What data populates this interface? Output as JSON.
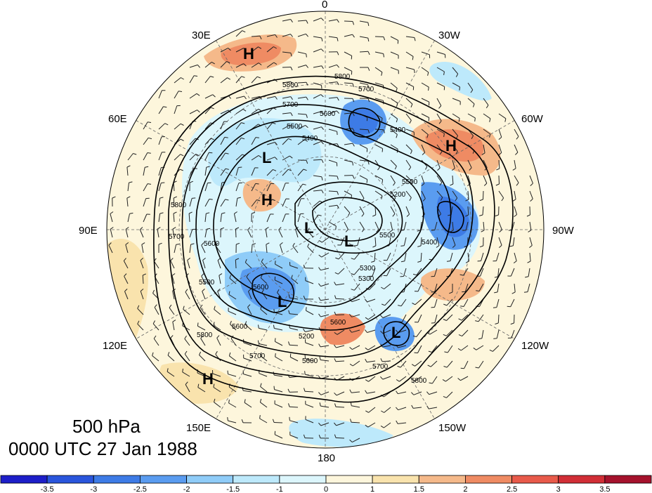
{
  "map": {
    "level": "500 hPa",
    "valid_time": "0000 UTC 27 Jan 1988",
    "longitude_labels": [
      "0",
      "30W",
      "60W",
      "90W",
      "120W",
      "150W",
      "180",
      "150E",
      "120E",
      "90E",
      "60E",
      "30E"
    ],
    "contour_labels": [
      "5800",
      "5800",
      "5700",
      "5700",
      "5600",
      "5500",
      "5400",
      "5400",
      "5500",
      "5600",
      "5800",
      "5700",
      "5600",
      "5500",
      "5200",
      "5300",
      "5500",
      "5600",
      "5600",
      "5700",
      "5800",
      "5600",
      "5700",
      "5800",
      "5200",
      "5400",
      "5300"
    ],
    "pressure_centers": {
      "high": "H",
      "low": "L"
    }
  },
  "colorbar": {
    "ticks": [
      "-3.5",
      "-3",
      "-2.5",
      "-2",
      "-1.5",
      "-1",
      "0",
      "1",
      "1.5",
      "2",
      "2.5",
      "3",
      "3.5"
    ],
    "colors": [
      "#1d1ec8",
      "#2a55dc",
      "#3d7be6",
      "#5a9cf0",
      "#8fccf8",
      "#bde9fb",
      "#dcf6fc",
      "#fdf6dc",
      "#f9e3ad",
      "#f5b98a",
      "#ef8b63",
      "#e85a4a",
      "#d12e36",
      "#a5122c"
    ]
  }
}
